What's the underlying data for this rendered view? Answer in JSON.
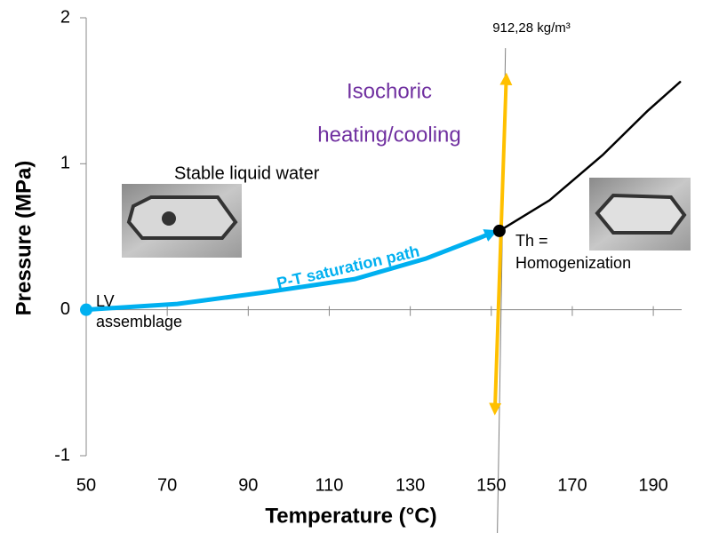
{
  "chart_data": {
    "type": "line",
    "x_label": "Temperature (°C)",
    "y_label": "Pressure (MPa)",
    "xlim": [
      50,
      197
    ],
    "ylim": [
      -1,
      2
    ],
    "xticks": [
      50,
      70,
      90,
      110,
      130,
      150,
      170,
      190
    ],
    "yticks": [
      -1,
      0,
      1,
      2
    ],
    "series": [
      {
        "color": "#00b0f0",
        "x": [
          50,
          72.5,
          94.4,
          116.3,
          133.8,
          146.9,
          150.4
        ],
        "values": [
          0,
          0.04,
          0.12,
          0.21,
          0.35,
          0.49,
          0.53
        ]
      },
      {
        "color": "#000000",
        "x": [
          152,
          164.4,
          177.5,
          188.5,
          196.6
        ],
        "values": [
          0.54,
          0.75,
          1.06,
          1.36,
          1.56
        ]
      },
      {
        "color": "#808080",
        "x": [
          153.5,
          151.5
        ],
        "values": [
          1.79,
          -1.53
        ]
      },
      {
        "color": "#ffc000",
        "x": [
          150.9,
          153.7
        ],
        "values": [
          -0.69,
          1.59
        ]
      }
    ],
    "points": [
      {
        "x": 50,
        "y": 0,
        "color": "#00b0f0"
      },
      {
        "x": 152,
        "y": 0.54,
        "color": "#000000"
      }
    ],
    "annotations": [
      "912,28 kg/m³",
      "Isochoric",
      "heating/cooling",
      "Stable liquid water",
      "Th =",
      "Homogenization",
      "LV",
      "assemblage",
      "P-T saturation path"
    ]
  }
}
